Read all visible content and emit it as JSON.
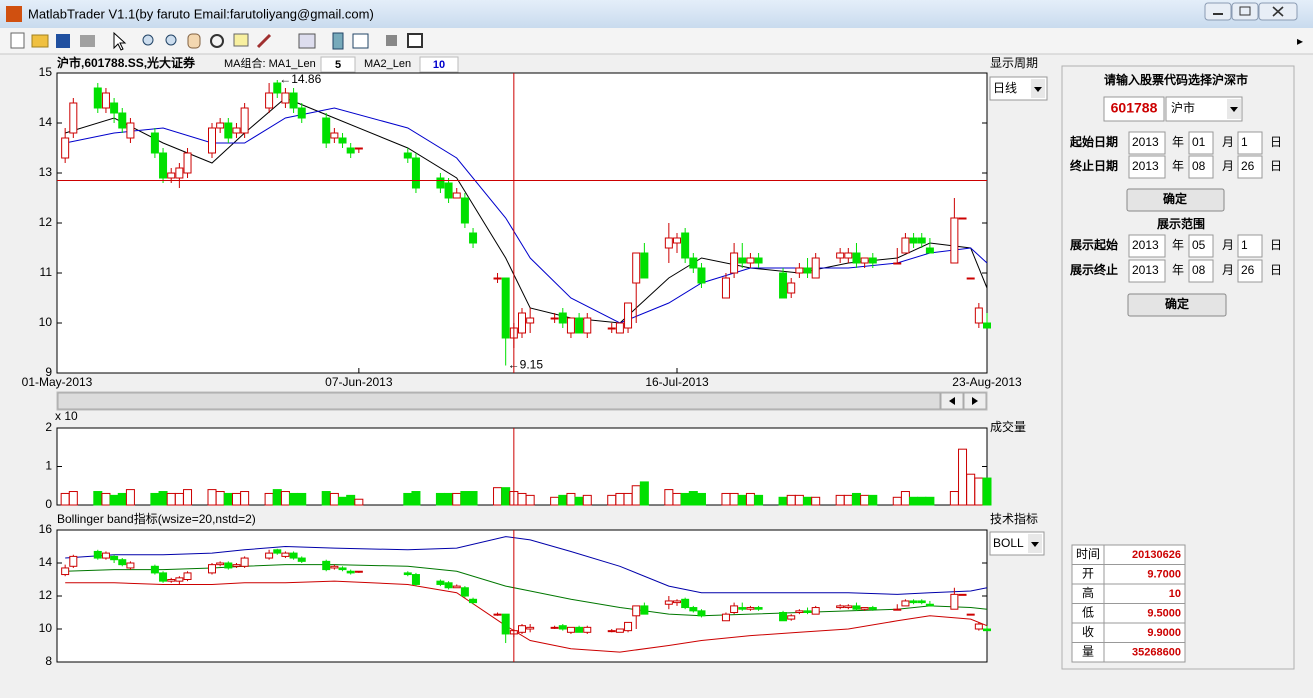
{
  "window": {
    "title": "MatlabTrader V1.1(by faruto Email:farutoliyang@gmail.com)",
    "period_label": "显示周期",
    "period_select": "日线",
    "volume_label": "成交量",
    "indicator_label": "技术指标",
    "indicator_select": "BOLL",
    "ma_label1": "MA组合: MA1_Len",
    "ma1": "5",
    "ma_label2": "MA2_Len",
    "ma2": "10"
  },
  "panel": {
    "prompt": "请输入股票代码选择沪深市",
    "code": "601788",
    "market": "沪市",
    "date_rows": [
      {
        "label": "起始日期",
        "year": "2013",
        "year_unit": "年",
        "month": "01",
        "month_unit": "月",
        "day": "1",
        "day_unit": "日"
      },
      {
        "label": "终止日期",
        "year": "2013",
        "year_unit": "年",
        "month": "08",
        "month_unit": "月",
        "day": "26",
        "day_unit": "日"
      },
      {
        "label": "展示起始",
        "year": "2013",
        "year_unit": "年",
        "month": "05",
        "month_unit": "月",
        "day": "1",
        "day_unit": "日"
      },
      {
        "label": "展示终止",
        "year": "2013",
        "year_unit": "年",
        "month": "08",
        "month_unit": "月",
        "day": "26",
        "day_unit": "日"
      }
    ],
    "confirm1": "确定",
    "range_title": "展示范围",
    "confirm2": "确定"
  },
  "info_table": {
    "rows": [
      [
        "时间",
        "20130626"
      ],
      [
        "开",
        "9.7000"
      ],
      [
        "高",
        "10"
      ],
      [
        "低",
        "9.5000"
      ],
      [
        "收",
        "9.9000"
      ],
      [
        "量",
        "35268600"
      ]
    ]
  },
  "chart_data": [
    {
      "type": "candlestick",
      "title": "沪市,601788.SS,光大证券",
      "x": [
        "2013-05-02",
        "2013-05-03",
        "2013-05-06",
        "2013-05-07",
        "2013-05-08",
        "2013-05-09",
        "2013-05-10",
        "2013-05-13",
        "2013-05-14",
        "2013-05-15",
        "2013-05-16",
        "2013-05-17",
        "2013-05-20",
        "2013-05-21",
        "2013-05-22",
        "2013-05-23",
        "2013-05-24",
        "2013-05-27",
        "2013-05-28",
        "2013-05-29",
        "2013-05-30",
        "2013-05-31",
        "2013-06-03",
        "2013-06-04",
        "2013-06-05",
        "2013-06-06",
        "2013-06-07",
        "2013-06-13",
        "2013-06-14",
        "2013-06-17",
        "2013-06-18",
        "2013-06-19",
        "2013-06-20",
        "2013-06-21",
        "2013-06-24",
        "2013-06-25",
        "2013-06-26",
        "2013-06-27",
        "2013-06-28",
        "2013-07-01",
        "2013-07-02",
        "2013-07-03",
        "2013-07-04",
        "2013-07-05",
        "2013-07-08",
        "2013-07-09",
        "2013-07-10",
        "2013-07-11",
        "2013-07-12",
        "2013-07-15",
        "2013-07-16",
        "2013-07-17",
        "2013-07-18",
        "2013-07-19",
        "2013-07-22",
        "2013-07-23",
        "2013-07-24",
        "2013-07-25",
        "2013-07-26",
        "2013-07-29",
        "2013-07-30",
        "2013-07-31",
        "2013-08-01",
        "2013-08-02",
        "2013-08-05",
        "2013-08-06",
        "2013-08-07",
        "2013-08-08",
        "2013-08-09",
        "2013-08-12",
        "2013-08-13",
        "2013-08-14",
        "2013-08-15",
        "2013-08-16",
        "2013-08-19",
        "2013-08-20",
        "2013-08-21",
        "2013-08-22",
        "2013-08-23"
      ],
      "open": [
        13.3,
        13.8,
        14.7,
        14.3,
        14.4,
        14.2,
        13.7,
        13.8,
        13.4,
        12.9,
        12.9,
        13.0,
        13.4,
        13.9,
        14.0,
        13.8,
        13.8,
        14.3,
        14.8,
        14.4,
        14.6,
        14.3,
        14.1,
        13.7,
        13.7,
        13.5,
        13.5,
        13.4,
        13.3,
        12.9,
        12.8,
        12.5,
        12.5,
        11.8,
        10.9,
        10.9,
        9.7,
        9.8,
        10.0,
        10.1,
        10.2,
        9.8,
        10.1,
        9.8,
        9.9,
        9.8,
        9.9,
        10.8,
        11.4,
        11.5,
        11.6,
        11.8,
        11.3,
        11.1,
        10.5,
        11.0,
        11.3,
        11.2,
        11.3,
        11.0,
        10.6,
        11.0,
        11.1,
        10.9,
        11.3,
        11.3,
        11.4,
        11.2,
        11.3,
        11.2,
        11.4,
        11.7,
        11.7,
        11.5,
        11.2,
        12.1,
        10.9,
        10.0,
        10.0
      ],
      "high": [
        13.9,
        14.5,
        14.8,
        14.7,
        14.5,
        14.3,
        14.1,
        13.9,
        13.5,
        13.1,
        13.2,
        13.5,
        14.0,
        14.1,
        14.1,
        14.0,
        14.4,
        14.8,
        14.86,
        14.7,
        14.7,
        14.4,
        14.2,
        13.9,
        13.8,
        13.6,
        13.5,
        13.5,
        13.4,
        13.0,
        12.9,
        12.7,
        12.6,
        11.9,
        11.0,
        10.9,
        10,
        10.3,
        10.3,
        10.2,
        10.3,
        10.1,
        10.2,
        10.2,
        10.0,
        10.0,
        10.4,
        11.4,
        11.6,
        12.0,
        11.8,
        11.9,
        11.4,
        11.2,
        11.0,
        11.6,
        11.6,
        11.4,
        11.4,
        11.1,
        10.9,
        11.2,
        11.3,
        11.4,
        11.5,
        11.5,
        11.6,
        11.3,
        11.4,
        11.5,
        11.8,
        11.8,
        11.8,
        11.7,
        12.5,
        12.1,
        10.9,
        10.4,
        10.2
      ],
      "low": [
        13.2,
        13.7,
        14.2,
        14.2,
        14.0,
        13.8,
        13.6,
        13.3,
        12.8,
        12.8,
        12.7,
        12.9,
        13.3,
        13.8,
        13.6,
        13.7,
        13.7,
        14.2,
        14.5,
        14.3,
        14.2,
        14.0,
        13.5,
        13.6,
        13.5,
        13.3,
        13.4,
        13.2,
        12.6,
        12.6,
        12.4,
        12.5,
        11.9,
        11.5,
        10.8,
        9.15,
        9.5,
        9.7,
        9.8,
        10.0,
        9.9,
        9.7,
        9.8,
        9.7,
        9.8,
        9.8,
        9.8,
        10.0,
        10.9,
        11.2,
        11.4,
        11.2,
        11.0,
        10.7,
        10.5,
        10.9,
        11.1,
        11.1,
        11.1,
        10.5,
        10.5,
        10.9,
        10.9,
        10.9,
        11.2,
        11.2,
        11.1,
        11.1,
        11.1,
        11.2,
        11.4,
        11.5,
        11.5,
        11.4,
        11.2,
        12.1,
        10.9,
        9.9,
        9.9
      ],
      "close": [
        13.7,
        14.4,
        14.3,
        14.6,
        14.2,
        13.9,
        14.0,
        13.4,
        12.9,
        13.0,
        13.1,
        13.4,
        13.9,
        14.0,
        13.7,
        13.9,
        14.3,
        14.6,
        14.6,
        14.6,
        14.3,
        14.1,
        13.6,
        13.8,
        13.6,
        13.4,
        13.5,
        13.3,
        12.7,
        12.7,
        12.5,
        12.6,
        12.0,
        11.6,
        10.9,
        9.7,
        9.9,
        10.2,
        10.1,
        10.1,
        10.0,
        10.1,
        9.8,
        10.1,
        9.9,
        10.0,
        10.4,
        11.4,
        10.9,
        11.7,
        11.7,
        11.3,
        11.1,
        10.8,
        10.9,
        11.4,
        11.2,
        11.3,
        11.2,
        10.5,
        10.8,
        11.1,
        11.0,
        11.3,
        11.4,
        11.4,
        11.2,
        11.3,
        11.2,
        11.2,
        11.7,
        11.6,
        11.6,
        11.4,
        12.1,
        12.1,
        10.9,
        10.3,
        9.9
      ],
      "up_color": "#cc0000",
      "down_color": "#00e000",
      "series": [
        {
          "color": "#000000",
          "x": [
            "2013-05-02",
            "2013-05-08",
            "2013-05-14",
            "2013-05-20",
            "2013-05-24",
            "2013-05-29",
            "2013-06-04",
            "2013-06-13",
            "2013-06-19",
            "2013-06-25",
            "2013-06-28",
            "2013-07-03",
            "2013-07-09",
            "2013-07-15",
            "2013-07-19",
            "2013-07-25",
            "2013-07-31",
            "2013-08-06",
            "2013-08-12",
            "2013-08-16",
            "2013-08-21",
            "2013-08-23"
          ],
          "values": [
            13.8,
            14.1,
            13.6,
            13.2,
            13.8,
            14.5,
            14.1,
            13.5,
            12.9,
            11.3,
            10.3,
            10.1,
            10.0,
            10.9,
            11.3,
            11.1,
            11.0,
            11.2,
            11.3,
            11.6,
            11.5,
            10.7
          ]
        },
        {
          "color": "#0000cc",
          "x": [
            "2013-05-02",
            "2013-05-08",
            "2013-05-14",
            "2013-05-20",
            "2013-05-24",
            "2013-05-29",
            "2013-06-04",
            "2013-06-13",
            "2013-06-19",
            "2013-06-25",
            "2013-06-28",
            "2013-07-03",
            "2013-07-09",
            "2013-07-15",
            "2013-07-19",
            "2013-07-25",
            "2013-07-31",
            "2013-08-06",
            "2013-08-12",
            "2013-08-16",
            "2013-08-21",
            "2013-08-23"
          ],
          "values": [
            13.6,
            13.8,
            13.9,
            13.6,
            13.6,
            14.1,
            14.3,
            13.9,
            13.3,
            12.1,
            11.3,
            10.5,
            10.0,
            10.4,
            10.8,
            11.1,
            11.1,
            11.1,
            11.2,
            11.4,
            11.5,
            11.2
          ]
        }
      ],
      "annotations": [
        {
          "text": "←14.86",
          "x": "2013-05-28",
          "y": 14.86
        },
        {
          "text": "←9.15",
          "x": "2013-06-25",
          "y": 9.15
        }
      ],
      "crosshair": {
        "x": "2013-06-26",
        "y": 12.85,
        "color": "#cc0000"
      },
      "xlim": [
        "2013-05-01",
        "2013-08-23"
      ],
      "xticks": [
        {
          "value": "2013-05-01",
          "label": "01-May-2013"
        },
        {
          "value": "2013-06-07",
          "label": "07-Jun-2013"
        },
        {
          "value": "2013-07-16",
          "label": "16-Jul-2013"
        },
        {
          "value": "2013-08-23",
          "label": "23-Aug-2013"
        }
      ],
      "ylim": [
        9,
        15
      ],
      "yticks": [
        9,
        10,
        11,
        12,
        13,
        14,
        15
      ]
    },
    {
      "type": "bar",
      "title": "x 10",
      "x": [
        "2013-05-02",
        "2013-05-03",
        "2013-05-06",
        "2013-05-07",
        "2013-05-08",
        "2013-05-09",
        "2013-05-10",
        "2013-05-13",
        "2013-05-14",
        "2013-05-15",
        "2013-05-16",
        "2013-05-17",
        "2013-05-20",
        "2013-05-21",
        "2013-05-22",
        "2013-05-23",
        "2013-05-24",
        "2013-05-27",
        "2013-05-28",
        "2013-05-29",
        "2013-05-30",
        "2013-05-31",
        "2013-06-03",
        "2013-06-04",
        "2013-06-05",
        "2013-06-06",
        "2013-06-07",
        "2013-06-13",
        "2013-06-14",
        "2013-06-17",
        "2013-06-18",
        "2013-06-19",
        "2013-06-20",
        "2013-06-21",
        "2013-06-24",
        "2013-06-25",
        "2013-06-26",
        "2013-06-27",
        "2013-06-28",
        "2013-07-01",
        "2013-07-02",
        "2013-07-03",
        "2013-07-04",
        "2013-07-05",
        "2013-07-08",
        "2013-07-09",
        "2013-07-10",
        "2013-07-11",
        "2013-07-12",
        "2013-07-15",
        "2013-07-16",
        "2013-07-17",
        "2013-07-18",
        "2013-07-19",
        "2013-07-22",
        "2013-07-23",
        "2013-07-24",
        "2013-07-25",
        "2013-07-26",
        "2013-07-29",
        "2013-07-30",
        "2013-07-31",
        "2013-08-01",
        "2013-08-02",
        "2013-08-05",
        "2013-08-06",
        "2013-08-07",
        "2013-08-08",
        "2013-08-09",
        "2013-08-12",
        "2013-08-13",
        "2013-08-14",
        "2013-08-15",
        "2013-08-16",
        "2013-08-19",
        "2013-08-20",
        "2013-08-21",
        "2013-08-22",
        "2013-08-23"
      ],
      "values": [
        0.3,
        0.35,
        0.35,
        0.3,
        0.25,
        0.3,
        0.4,
        0.3,
        0.35,
        0.3,
        0.3,
        0.4,
        0.4,
        0.35,
        0.3,
        0.3,
        0.35,
        0.3,
        0.4,
        0.35,
        0.3,
        0.3,
        0.35,
        0.3,
        0.2,
        0.25,
        0.15,
        0.3,
        0.35,
        0.3,
        0.3,
        0.3,
        0.35,
        0.35,
        0.45,
        0.45,
        0.35,
        0.3,
        0.25,
        0.2,
        0.25,
        0.3,
        0.2,
        0.25,
        0.25,
        0.3,
        0.3,
        0.5,
        0.6,
        0.4,
        0.3,
        0.3,
        0.35,
        0.3,
        0.3,
        0.3,
        0.25,
        0.3,
        0.25,
        0.2,
        0.25,
        0.25,
        0.2,
        0.2,
        0.25,
        0.25,
        0.3,
        0.25,
        0.25,
        0.2,
        0.35,
        0.2,
        0.2,
        0.2,
        0.35,
        1.45,
        0.8,
        0.7,
        0.7
      ],
      "up_color": "#cc0000",
      "down_color": "#00e000",
      "xlim": [
        "2013-05-01",
        "2013-08-23"
      ],
      "ylim": [
        0,
        2
      ],
      "yticks": [
        0,
        1,
        2
      ]
    },
    {
      "type": "line",
      "title": "Bollinger band指标(wsize=20,nstd=2)",
      "series": [
        {
          "color": "#0000aa",
          "x": [
            "2013-05-02",
            "2013-05-08",
            "2013-05-14",
            "2013-05-20",
            "2013-05-24",
            "2013-05-29",
            "2013-06-04",
            "2013-06-13",
            "2013-06-19",
            "2013-06-25",
            "2013-06-28",
            "2013-07-03",
            "2013-07-09",
            "2013-07-15",
            "2013-07-19",
            "2013-07-25",
            "2013-07-31",
            "2013-08-06",
            "2013-08-12",
            "2013-08-16",
            "2013-08-21",
            "2013-08-23"
          ],
          "values": [
            14.3,
            14.5,
            14.5,
            14.6,
            14.8,
            15.0,
            14.9,
            14.8,
            14.9,
            15.6,
            15.4,
            14.7,
            13.8,
            12.6,
            12.2,
            12.2,
            12.2,
            12.2,
            12.1,
            12.2,
            12.3,
            12.5
          ]
        },
        {
          "color": "#007700",
          "x": [
            "2013-05-02",
            "2013-05-08",
            "2013-05-14",
            "2013-05-20",
            "2013-05-24",
            "2013-05-29",
            "2013-06-04",
            "2013-06-13",
            "2013-06-19",
            "2013-06-25",
            "2013-06-28",
            "2013-07-03",
            "2013-07-09",
            "2013-07-15",
            "2013-07-19",
            "2013-07-25",
            "2013-07-31",
            "2013-08-06",
            "2013-08-12",
            "2013-08-16",
            "2013-08-21",
            "2013-08-23"
          ],
          "values": [
            13.5,
            13.6,
            13.6,
            13.7,
            13.8,
            13.9,
            13.9,
            13.8,
            13.5,
            12.6,
            12.3,
            11.8,
            11.3,
            10.9,
            10.8,
            10.9,
            11.0,
            11.1,
            11.2,
            11.4,
            11.3,
            11.2
          ]
        },
        {
          "color": "#cc0000",
          "x": [
            "2013-05-02",
            "2013-05-08",
            "2013-05-14",
            "2013-05-20",
            "2013-05-24",
            "2013-05-29",
            "2013-06-04",
            "2013-06-13",
            "2013-06-19",
            "2013-06-25",
            "2013-06-28",
            "2013-07-03",
            "2013-07-09",
            "2013-07-15",
            "2013-07-19",
            "2013-07-25",
            "2013-07-31",
            "2013-08-06",
            "2013-08-12",
            "2013-08-16",
            "2013-08-21",
            "2013-08-23"
          ],
          "values": [
            12.8,
            12.8,
            12.7,
            12.7,
            12.8,
            12.8,
            12.9,
            12.7,
            12.2,
            10.2,
            9.3,
            8.8,
            8.6,
            9.0,
            9.3,
            9.6,
            9.8,
            10.0,
            10.5,
            10.8,
            10.6,
            10.2
          ]
        }
      ],
      "xlim": [
        "2013-05-01",
        "2013-08-23"
      ],
      "ylim": [
        8,
        16
      ],
      "yticks": [
        8,
        10,
        12,
        14,
        16
      ]
    }
  ]
}
